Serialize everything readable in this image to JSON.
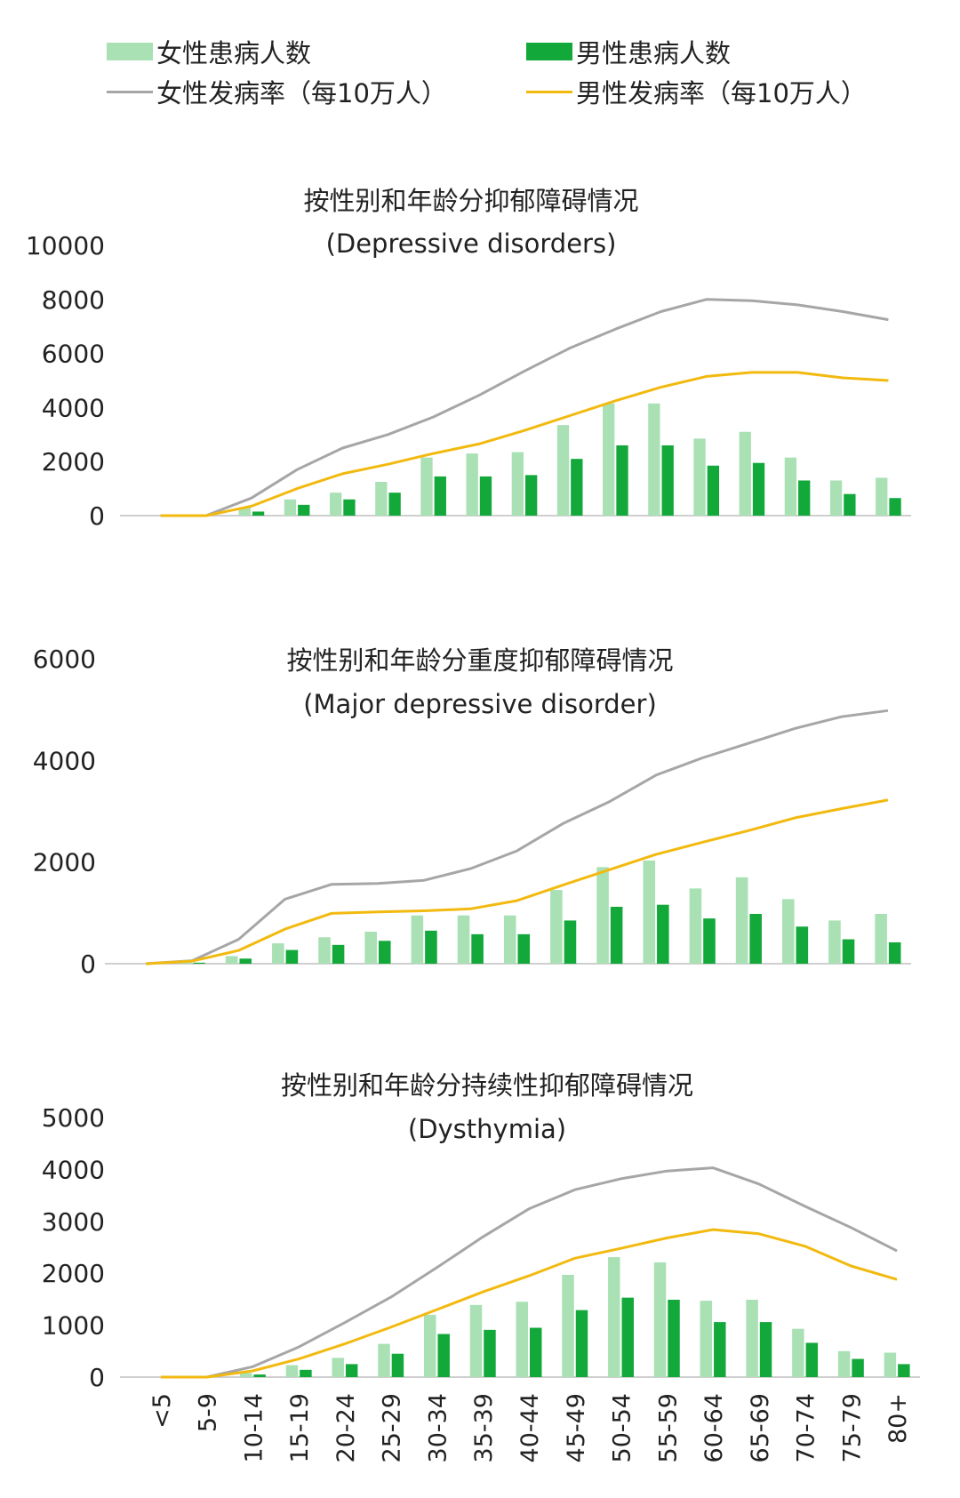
{
  "legend": {
    "female_count": "女性患病人数",
    "male_count": "男性患病人数",
    "female_rate": "女性发病率（每10万人）",
    "male_rate": "男性发病率（每10万人）"
  },
  "colors": {
    "female_bar": "#a9e0b4",
    "male_bar": "#12a83a",
    "female_line": "#a6a6a6",
    "male_line": "#f2b90f",
    "axis": "#bfbfbf"
  },
  "chart_data": [
    {
      "type": "bar",
      "title": "按性别和年龄分抑郁障碍情况",
      "subtitle": "(Depressive disorders)",
      "categories": [
        "<5",
        "5-9",
        "10-14",
        "15-19",
        "20-24",
        "25-29",
        "30-34",
        "35-39",
        "40-44",
        "45-49",
        "50-54",
        "55-59",
        "60-64",
        "65-69",
        "70-74",
        "75-79",
        "80+"
      ],
      "ylim": [
        0,
        10000
      ],
      "yticks": [
        0,
        2000,
        4000,
        6000,
        8000,
        10000
      ],
      "series": [
        {
          "name": "女性患病人数",
          "kind": "bar",
          "values": [
            0,
            0,
            300,
            600,
            850,
            1250,
            2150,
            2300,
            2350,
            3350,
            4150,
            4150,
            2850,
            3100,
            2150,
            1300,
            1400
          ]
        },
        {
          "name": "男性患病人数",
          "kind": "bar",
          "values": [
            0,
            0,
            150,
            400,
            600,
            850,
            1450,
            1450,
            1500,
            2100,
            2600,
            2600,
            1850,
            1950,
            1300,
            800,
            650
          ]
        },
        {
          "name": "女性发病率（每10万人）",
          "kind": "line",
          "values": [
            0,
            0,
            650,
            1700,
            2500,
            3000,
            3650,
            4450,
            5350,
            6200,
            6900,
            7550,
            8000,
            7950,
            7800,
            7550,
            7250
          ]
        },
        {
          "name": "男性发病率（每10万人）",
          "kind": "line",
          "values": [
            0,
            0,
            350,
            1000,
            1550,
            1900,
            2300,
            2650,
            3150,
            3700,
            4250,
            4750,
            5150,
            5300,
            5300,
            5100,
            5000
          ]
        }
      ]
    },
    {
      "type": "bar",
      "title": "按性别和年龄分重度抑郁障碍情况",
      "subtitle": "(Major depressive disorder)",
      "categories": [
        "<5",
        "5-9",
        "10-14",
        "15-19",
        "20-24",
        "25-29",
        "30-34",
        "35-39",
        "40-44",
        "45-49",
        "50-54",
        "55-59",
        "60-64",
        "65-69",
        "70-74",
        "75-79",
        "80+"
      ],
      "ylim": [
        0,
        6000
      ],
      "yticks": [
        0,
        2000,
        4000,
        6000
      ],
      "series": [
        {
          "name": "女性患病人数",
          "kind": "bar",
          "values": [
            0,
            30,
            150,
            400,
            520,
            630,
            950,
            950,
            950,
            1450,
            1900,
            2030,
            1480,
            1700,
            1270,
            850,
            980
          ]
        },
        {
          "name": "男性患病人数",
          "kind": "bar",
          "values": [
            0,
            20,
            100,
            270,
            370,
            450,
            650,
            580,
            580,
            850,
            1120,
            1160,
            890,
            980,
            730,
            480,
            420
          ]
        },
        {
          "name": "女性发病率（每10万人）",
          "kind": "line",
          "values": [
            0,
            60,
            480,
            1270,
            1560,
            1580,
            1640,
            1870,
            2220,
            2760,
            3190,
            3710,
            4050,
            4340,
            4630,
            4860,
            4980
          ]
        },
        {
          "name": "男性发病率（每10万人）",
          "kind": "line",
          "values": [
            0,
            50,
            260,
            680,
            990,
            1020,
            1040,
            1080,
            1240,
            1550,
            1850,
            2150,
            2390,
            2620,
            2870,
            3050,
            3220
          ]
        }
      ]
    },
    {
      "type": "bar",
      "title": "按性别和年龄分持续性抑郁障碍情况",
      "subtitle": "(Dysthymia)",
      "categories": [
        "<5",
        "5-9",
        "10-14",
        "15-19",
        "20-24",
        "25-29",
        "30-34",
        "35-39",
        "40-44",
        "45-49",
        "50-54",
        "55-59",
        "60-64",
        "65-69",
        "70-74",
        "75-79",
        "80+"
      ],
      "ylim": [
        0,
        5000
      ],
      "yticks": [
        0,
        1000,
        2000,
        3000,
        4000,
        5000
      ],
      "series": [
        {
          "name": "女性患病人数",
          "kind": "bar",
          "values": [
            0,
            0,
            80,
            230,
            370,
            640,
            1200,
            1390,
            1450,
            1970,
            2310,
            2210,
            1470,
            1490,
            930,
            500,
            470
          ]
        },
        {
          "name": "男性患病人数",
          "kind": "bar",
          "values": [
            0,
            0,
            50,
            140,
            250,
            450,
            830,
            910,
            950,
            1290,
            1530,
            1490,
            1060,
            1060,
            660,
            350,
            250
          ]
        },
        {
          "name": "女性发病率（每10万人）",
          "kind": "line",
          "values": [
            0,
            0,
            200,
            580,
            1050,
            1540,
            2110,
            2700,
            3240,
            3610,
            3820,
            3970,
            4030,
            3720,
            3290,
            2880,
            2430
          ]
        },
        {
          "name": "男性发病率（每10万人）",
          "kind": "line",
          "values": [
            0,
            0,
            120,
            350,
            640,
            960,
            1300,
            1640,
            1950,
            2290,
            2480,
            2680,
            2840,
            2760,
            2520,
            2140,
            1880
          ]
        }
      ]
    }
  ]
}
